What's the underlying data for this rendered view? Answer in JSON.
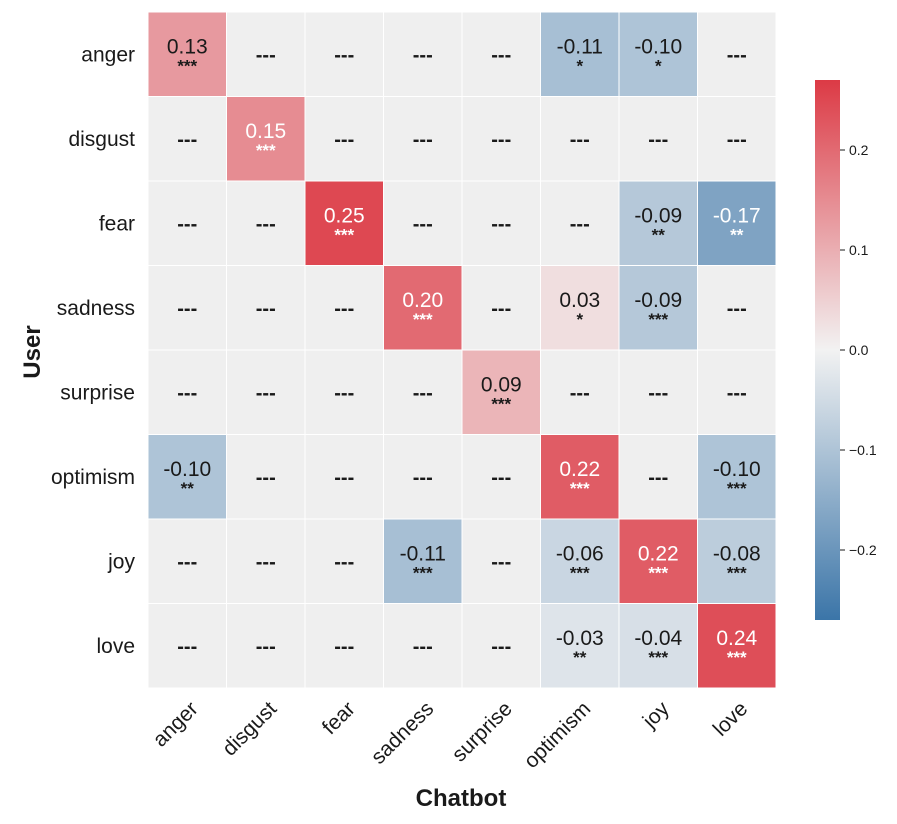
{
  "chart_data": {
    "type": "heatmap",
    "xlabel": "Chatbot",
    "ylabel": "User",
    "x_categories": [
      "anger",
      "disgust",
      "fear",
      "sadness",
      "surprise",
      "optimism",
      "joy",
      "love"
    ],
    "y_categories": [
      "anger",
      "disgust",
      "fear",
      "sadness",
      "surprise",
      "optimism",
      "joy",
      "love"
    ],
    "values": [
      [
        0.13,
        null,
        null,
        null,
        null,
        -0.11,
        -0.1,
        null
      ],
      [
        null,
        0.15,
        null,
        null,
        null,
        null,
        null,
        null
      ],
      [
        null,
        null,
        0.25,
        null,
        null,
        null,
        -0.09,
        -0.17
      ],
      [
        null,
        null,
        null,
        0.2,
        null,
        0.03,
        -0.09,
        null
      ],
      [
        null,
        null,
        null,
        null,
        0.09,
        null,
        null,
        null
      ],
      [
        -0.1,
        null,
        null,
        null,
        null,
        0.22,
        null,
        -0.1
      ],
      [
        null,
        null,
        null,
        -0.11,
        null,
        -0.06,
        0.22,
        -0.08
      ],
      [
        null,
        null,
        null,
        null,
        null,
        -0.03,
        -0.04,
        0.24
      ]
    ],
    "annotations": [
      [
        [
          "0.13",
          "***"
        ],
        [
          "---",
          ""
        ],
        [
          "---",
          ""
        ],
        [
          "---",
          ""
        ],
        [
          "---",
          ""
        ],
        [
          "-0.11",
          "*"
        ],
        [
          "-0.10",
          "*"
        ],
        [
          "---",
          ""
        ]
      ],
      [
        [
          "---",
          ""
        ],
        [
          "0.15",
          "***"
        ],
        [
          "---",
          ""
        ],
        [
          "---",
          ""
        ],
        [
          "---",
          ""
        ],
        [
          "---",
          ""
        ],
        [
          "---",
          ""
        ],
        [
          "---",
          ""
        ]
      ],
      [
        [
          "---",
          ""
        ],
        [
          "---",
          ""
        ],
        [
          "0.25",
          "***"
        ],
        [
          "---",
          ""
        ],
        [
          "---",
          ""
        ],
        [
          "---",
          ""
        ],
        [
          "-0.09",
          "**"
        ],
        [
          "-0.17",
          "**"
        ]
      ],
      [
        [
          "---",
          ""
        ],
        [
          "---",
          ""
        ],
        [
          "---",
          ""
        ],
        [
          "0.20",
          "***"
        ],
        [
          "---",
          ""
        ],
        [
          "0.03",
          "*"
        ],
        [
          "-0.09",
          "***"
        ],
        [
          "---",
          ""
        ]
      ],
      [
        [
          "---",
          ""
        ],
        [
          "---",
          ""
        ],
        [
          "---",
          ""
        ],
        [
          "---",
          ""
        ],
        [
          "0.09",
          "***"
        ],
        [
          "---",
          ""
        ],
        [
          "---",
          ""
        ],
        [
          "---",
          ""
        ]
      ],
      [
        [
          "-0.10",
          "**"
        ],
        [
          "---",
          ""
        ],
        [
          "---",
          ""
        ],
        [
          "---",
          ""
        ],
        [
          "---",
          ""
        ],
        [
          "0.22",
          "***"
        ],
        [
          "---",
          ""
        ],
        [
          "-0.10",
          "***"
        ]
      ],
      [
        [
          "---",
          ""
        ],
        [
          "---",
          ""
        ],
        [
          "---",
          ""
        ],
        [
          "-0.11",
          "***"
        ],
        [
          "---",
          ""
        ],
        [
          "-0.06",
          "***"
        ],
        [
          "0.22",
          "***"
        ],
        [
          "-0.08",
          "***"
        ]
      ],
      [
        [
          "---",
          ""
        ],
        [
          "---",
          ""
        ],
        [
          "---",
          ""
        ],
        [
          "---",
          ""
        ],
        [
          "---",
          ""
        ],
        [
          "-0.03",
          "**"
        ],
        [
          "-0.04",
          "***"
        ],
        [
          "0.24",
          "***"
        ]
      ]
    ],
    "colorbar": {
      "min": -0.27,
      "max": 0.27,
      "ticks": [
        0.2,
        0.1,
        0.0,
        -0.1,
        -0.2
      ],
      "tick_labels": [
        "0.2",
        "0.1",
        "0.0",
        "−0.1",
        "−0.2"
      ],
      "colors": {
        "negative": "#3b75a8",
        "neutral": "#f2f2f2",
        "positive": "#dc3a45"
      }
    },
    "empty_cell_color": "#efefef",
    "grid": true
  }
}
